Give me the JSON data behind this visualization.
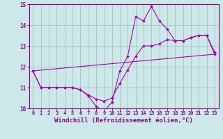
{
  "xlabel": "Windchill (Refroidissement éolien,°C)",
  "bg_color": "#cce8e8",
  "line_color": "#aa00aa",
  "grid_color": "#99bbbb",
  "axis_color": "#880088",
  "text_color": "#880088",
  "xlim": [
    -0.5,
    23.5
  ],
  "ylim": [
    10,
    15
  ],
  "xticks": [
    0,
    1,
    2,
    3,
    4,
    5,
    6,
    7,
    8,
    9,
    10,
    11,
    12,
    13,
    14,
    15,
    16,
    17,
    18,
    19,
    20,
    21,
    22,
    23
  ],
  "yticks": [
    10,
    11,
    12,
    13,
    14,
    15
  ],
  "line1_x": [
    0,
    1,
    2,
    3,
    4,
    5,
    6,
    7,
    8,
    9,
    10,
    11,
    12,
    13,
    14,
    15,
    16,
    17,
    18,
    19,
    20,
    21,
    22,
    23
  ],
  "line1_y": [
    11.8,
    11.0,
    11.0,
    11.0,
    11.0,
    11.0,
    10.9,
    10.6,
    10.1,
    9.85,
    10.3,
    11.8,
    12.5,
    14.4,
    14.2,
    14.9,
    14.2,
    13.8,
    13.25,
    13.25,
    13.4,
    13.5,
    13.5,
    12.7
  ],
  "line2_x": [
    0,
    1,
    2,
    3,
    4,
    5,
    6,
    7,
    8,
    9,
    10,
    11,
    12,
    13,
    14,
    15,
    16,
    17,
    18,
    19,
    20,
    21,
    22,
    23
  ],
  "line2_y": [
    11.8,
    11.0,
    11.0,
    11.0,
    11.0,
    11.0,
    10.9,
    10.65,
    10.45,
    10.35,
    10.5,
    11.2,
    11.85,
    12.5,
    13.0,
    13.0,
    13.1,
    13.3,
    13.25,
    13.25,
    13.4,
    13.5,
    13.5,
    12.6
  ],
  "line3_x": [
    0,
    23
  ],
  "line3_y": [
    11.8,
    12.6
  ],
  "marker": "D",
  "marker_size": 2.0,
  "linewidth": 0.8,
  "tick_fontsize": 5.0,
  "xlabel_fontsize": 6.5
}
